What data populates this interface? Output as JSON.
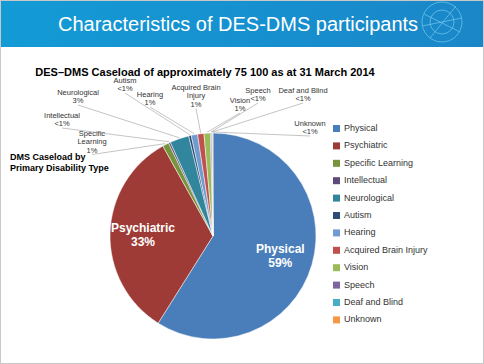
{
  "header": {
    "title": "Characteristics of DES-DMS participants"
  },
  "chart_data": {
    "type": "pie",
    "title": "DES–DMS Caseload of approximately 75 100 as at 31 March 2014",
    "subtitle": "DMS Caseload by Primary Disability Type",
    "categories": [
      "Physical",
      "Psychiatric",
      "Specific Learning",
      "Intellectual",
      "Neurological",
      "Autism",
      "Hearing",
      "Acquired Brain Injury",
      "Vision",
      "Speech",
      "Deaf and Blind",
      "Unknown"
    ],
    "values": [
      59,
      33,
      1,
      0.3,
      3,
      0.4,
      1,
      1,
      1,
      0.2,
      0.1,
      0.1
    ],
    "value_labels": [
      "59%",
      "33%",
      "1%",
      "<1%",
      "3%",
      "<1%",
      "1%",
      "1%",
      "1%",
      "<1%",
      "<1%",
      "<1%"
    ],
    "colors": [
      "#4a7ebb",
      "#9e3b37",
      "#77933c",
      "#5f497a",
      "#31859c",
      "#2c4d75",
      "#6f9bd0",
      "#c0504d",
      "#9bbb59",
      "#8064a2",
      "#4bacc6",
      "#f79646"
    ],
    "data_labels": true,
    "legend": "right"
  }
}
